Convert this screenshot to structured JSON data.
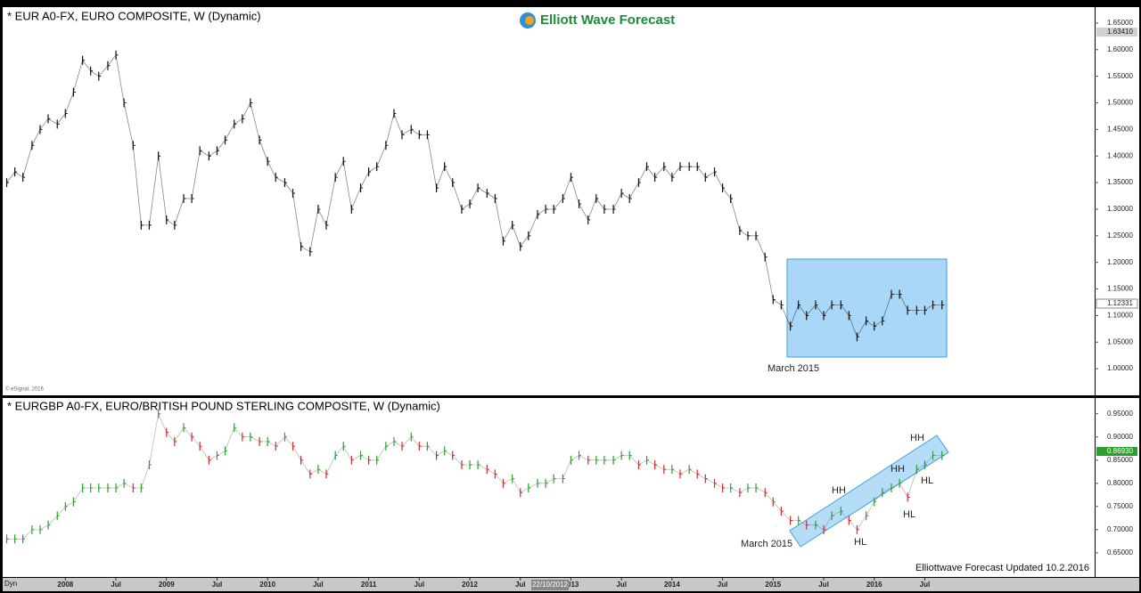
{
  "logo": "Elliott Wave Forecast",
  "credit": "© eSignal, 2016",
  "footer_note": "Elliottwave Forecast Updated 10.2.2016",
  "mode": "Dyn",
  "cursor_date": "22/10/2012",
  "chart_data": [
    {
      "type": "ohlc",
      "title": "* EUR A0-FX, EURO COMPOSITE, W (Dynamic)",
      "xlim": [
        2007.38,
        2018.18
      ],
      "ylim": [
        0.95,
        1.68
      ],
      "yticks": [
        {
          "value": 1.0,
          "label": "1.00000"
        },
        {
          "value": 1.05,
          "label": "1.05000"
        },
        {
          "value": 1.1,
          "label": "1.10000"
        },
        {
          "value": 1.15,
          "label": "1.15000"
        },
        {
          "value": 1.2,
          "label": "1.20000"
        },
        {
          "value": 1.25,
          "label": "1.25000"
        },
        {
          "value": 1.3,
          "label": "1.30000"
        },
        {
          "value": 1.35,
          "label": "1.35000"
        },
        {
          "value": 1.4,
          "label": "1.40000"
        },
        {
          "value": 1.45,
          "label": "1.45000"
        },
        {
          "value": 1.5,
          "label": "1.50000"
        },
        {
          "value": 1.55,
          "label": "1.55000"
        },
        {
          "value": 1.6,
          "label": "1.60000"
        },
        {
          "value": 1.65,
          "label": "1.65000"
        }
      ],
      "price_tags": [
        "1.63410",
        "1.12331"
      ],
      "annotations": [
        "March 2015"
      ],
      "highlight_color": "#a9d7f7",
      "x": [
        2007.42,
        2007.5,
        2007.58,
        2007.67,
        2007.75,
        2007.83,
        2007.92,
        2008.0,
        2008.08,
        2008.17,
        2008.25,
        2008.33,
        2008.42,
        2008.5,
        2008.58,
        2008.67,
        2008.75,
        2008.83,
        2008.92,
        2009.0,
        2009.08,
        2009.17,
        2009.25,
        2009.33,
        2009.42,
        2009.5,
        2009.58,
        2009.67,
        2009.75,
        2009.83,
        2009.92,
        2010.0,
        2010.08,
        2010.17,
        2010.25,
        2010.33,
        2010.42,
        2010.5,
        2010.58,
        2010.67,
        2010.75,
        2010.83,
        2010.92,
        2011.0,
        2011.08,
        2011.17,
        2011.25,
        2011.33,
        2011.42,
        2011.5,
        2011.58,
        2011.67,
        2011.75,
        2011.83,
        2011.92,
        2012.0,
        2012.08,
        2012.17,
        2012.25,
        2012.33,
        2012.42,
        2012.5,
        2012.58,
        2012.67,
        2012.75,
        2012.83,
        2012.92,
        2013.0,
        2013.08,
        2013.17,
        2013.25,
        2013.33,
        2013.42,
        2013.5,
        2013.58,
        2013.67,
        2013.75,
        2013.83,
        2013.92,
        2014.0,
        2014.08,
        2014.17,
        2014.25,
        2014.33,
        2014.42,
        2014.5,
        2014.58,
        2014.67,
        2014.75,
        2014.83,
        2014.92,
        2015.0,
        2015.08,
        2015.17,
        2015.25,
        2015.33,
        2015.42,
        2015.5,
        2015.58,
        2015.67,
        2015.75,
        2015.83,
        2015.92,
        2016.0,
        2016.08,
        2016.17,
        2016.25,
        2016.33,
        2016.42,
        2016.5,
        2016.58,
        2016.67
      ],
      "series": [
        {
          "color": "#111111",
          "values": [
            1.35,
            1.37,
            1.36,
            1.42,
            1.45,
            1.47,
            1.46,
            1.48,
            1.52,
            1.58,
            1.56,
            1.55,
            1.57,
            1.59,
            1.5,
            1.42,
            1.27,
            1.27,
            1.4,
            1.28,
            1.27,
            1.32,
            1.32,
            1.41,
            1.4,
            1.41,
            1.43,
            1.46,
            1.47,
            1.5,
            1.43,
            1.39,
            1.36,
            1.35,
            1.33,
            1.23,
            1.22,
            1.3,
            1.27,
            1.36,
            1.39,
            1.3,
            1.34,
            1.37,
            1.38,
            1.42,
            1.48,
            1.44,
            1.45,
            1.44,
            1.44,
            1.34,
            1.38,
            1.35,
            1.3,
            1.31,
            1.34,
            1.33,
            1.32,
            1.24,
            1.27,
            1.23,
            1.25,
            1.29,
            1.3,
            1.3,
            1.32,
            1.36,
            1.31,
            1.28,
            1.32,
            1.3,
            1.3,
            1.33,
            1.32,
            1.35,
            1.38,
            1.36,
            1.38,
            1.36,
            1.38,
            1.38,
            1.38,
            1.36,
            1.37,
            1.34,
            1.32,
            1.26,
            1.25,
            1.25,
            1.21,
            1.13,
            1.12,
            1.08,
            1.12,
            1.1,
            1.12,
            1.1,
            1.12,
            1.12,
            1.1,
            1.06,
            1.09,
            1.08,
            1.09,
            1.14,
            1.14,
            1.11,
            1.11,
            1.11,
            1.12,
            1.12
          ]
        }
      ]
    },
    {
      "type": "ohlc",
      "title": "* EURGBP A0-FX, EURO/BRITISH POUND STERLING COMPOSITE, W (Dynamic)",
      "xlim": [
        2007.38,
        2018.18
      ],
      "ylim": [
        0.598,
        0.984
      ],
      "yticks": [
        {
          "value": 0.65,
          "label": "0.65000"
        },
        {
          "value": 0.7,
          "label": "0.70000"
        },
        {
          "value": 0.75,
          "label": "0.75000"
        },
        {
          "value": 0.8,
          "label": "0.80000"
        },
        {
          "value": 0.85,
          "label": "0.85000"
        },
        {
          "value": 0.9,
          "label": "0.90000"
        },
        {
          "value": 0.95,
          "label": "0.95000"
        }
      ],
      "xticks": [
        2008,
        {
          "value": 2008.5,
          "label": "Jul"
        },
        2009,
        {
          "value": 2009.5,
          "label": "Jul"
        },
        2010,
        {
          "value": 2010.5,
          "label": "Jul"
        },
        2011,
        {
          "value": 2011.5,
          "label": "Jul"
        },
        2012,
        {
          "value": 2012.5,
          "label": "Jul"
        },
        2013,
        {
          "value": 2013.5,
          "label": "Jul"
        },
        2014,
        {
          "value": 2014.5,
          "label": "Jul"
        },
        2015,
        {
          "value": 2015.5,
          "label": "Jul"
        },
        2016,
        {
          "value": 2016.5,
          "label": "Jul"
        }
      ],
      "price_tags": [
        "0.86930"
      ],
      "annotations": [
        "March 2015",
        "HH",
        "HH",
        "HH",
        "HL",
        "HL",
        "HL"
      ],
      "highlight_color": "#a9d7f7",
      "up_color": "#2e9e2e",
      "down_color": "#d42a2a",
      "x": [
        2007.42,
        2007.5,
        2007.58,
        2007.67,
        2007.75,
        2007.83,
        2007.92,
        2008.0,
        2008.08,
        2008.17,
        2008.25,
        2008.33,
        2008.42,
        2008.5,
        2008.58,
        2008.67,
        2008.75,
        2008.83,
        2008.92,
        2009.0,
        2009.08,
        2009.17,
        2009.25,
        2009.33,
        2009.42,
        2009.5,
        2009.58,
        2009.67,
        2009.75,
        2009.83,
        2009.92,
        2010.0,
        2010.08,
        2010.17,
        2010.25,
        2010.33,
        2010.42,
        2010.5,
        2010.58,
        2010.67,
        2010.75,
        2010.83,
        2010.92,
        2011.0,
        2011.08,
        2011.17,
        2011.25,
        2011.33,
        2011.42,
        2011.5,
        2011.58,
        2011.67,
        2011.75,
        2011.83,
        2011.92,
        2012.0,
        2012.08,
        2012.17,
        2012.25,
        2012.33,
        2012.42,
        2012.5,
        2012.58,
        2012.67,
        2012.75,
        2012.83,
        2012.92,
        2013.0,
        2013.08,
        2013.17,
        2013.25,
        2013.33,
        2013.42,
        2013.5,
        2013.58,
        2013.67,
        2013.75,
        2013.83,
        2013.92,
        2014.0,
        2014.08,
        2014.17,
        2014.25,
        2014.33,
        2014.42,
        2014.5,
        2014.58,
        2014.67,
        2014.75,
        2014.83,
        2014.92,
        2015.0,
        2015.08,
        2015.17,
        2015.25,
        2015.33,
        2015.42,
        2015.5,
        2015.58,
        2015.67,
        2015.75,
        2015.83,
        2015.92,
        2016.0,
        2016.08,
        2016.17,
        2016.25,
        2016.33,
        2016.42,
        2016.5,
        2016.58,
        2016.67
      ],
      "series": [
        {
          "values": [
            0.68,
            0.68,
            0.68,
            0.7,
            0.7,
            0.71,
            0.73,
            0.75,
            0.76,
            0.79,
            0.79,
            0.79,
            0.79,
            0.79,
            0.8,
            0.79,
            0.79,
            0.84,
            0.95,
            0.91,
            0.89,
            0.92,
            0.9,
            0.88,
            0.85,
            0.86,
            0.87,
            0.92,
            0.9,
            0.9,
            0.89,
            0.89,
            0.88,
            0.9,
            0.88,
            0.85,
            0.82,
            0.83,
            0.82,
            0.86,
            0.88,
            0.85,
            0.86,
            0.85,
            0.85,
            0.88,
            0.89,
            0.88,
            0.9,
            0.88,
            0.88,
            0.86,
            0.87,
            0.86,
            0.84,
            0.84,
            0.84,
            0.83,
            0.82,
            0.8,
            0.81,
            0.78,
            0.79,
            0.8,
            0.8,
            0.81,
            0.81,
            0.85,
            0.86,
            0.85,
            0.85,
            0.85,
            0.85,
            0.86,
            0.86,
            0.84,
            0.85,
            0.84,
            0.83,
            0.83,
            0.82,
            0.83,
            0.82,
            0.81,
            0.8,
            0.79,
            0.79,
            0.78,
            0.79,
            0.79,
            0.78,
            0.76,
            0.74,
            0.72,
            0.72,
            0.71,
            0.71,
            0.7,
            0.73,
            0.74,
            0.72,
            0.7,
            0.73,
            0.76,
            0.78,
            0.79,
            0.8,
            0.77,
            0.83,
            0.84,
            0.86,
            0.86
          ]
        }
      ]
    }
  ]
}
